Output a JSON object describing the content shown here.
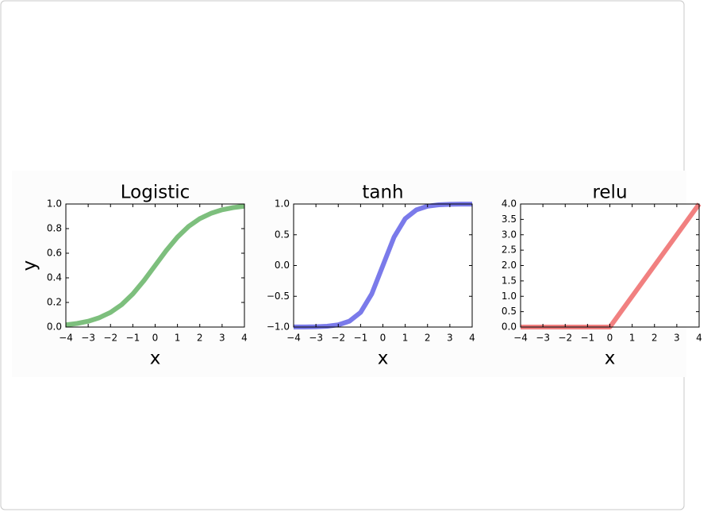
{
  "chart_data": [
    {
      "type": "line",
      "title": "Logistic",
      "xlabel": "x",
      "ylabel": "y",
      "color": "#6fb86f",
      "x": [
        -4,
        -3.5,
        -3,
        -2.5,
        -2,
        -1.5,
        -1,
        -0.5,
        0,
        0.5,
        1,
        1.5,
        2,
        2.5,
        3,
        3.5,
        4
      ],
      "values": [
        0.018,
        0.029,
        0.047,
        0.076,
        0.119,
        0.182,
        0.269,
        0.378,
        0.5,
        0.622,
        0.731,
        0.818,
        0.881,
        0.924,
        0.953,
        0.971,
        0.982
      ],
      "xlim": [
        -4,
        4
      ],
      "ylim": [
        0,
        1
      ],
      "xticks": [
        {
          "value": -4,
          "label": "−4"
        },
        {
          "value": -3,
          "label": "−3"
        },
        {
          "value": -2,
          "label": "−2"
        },
        {
          "value": -1,
          "label": "−1"
        },
        0,
        1,
        2,
        3,
        4
      ],
      "yticks": [
        {
          "value": 0,
          "label": "0.0"
        },
        0.2,
        0.4,
        0.6,
        0.8,
        {
          "value": 1,
          "label": "1.0"
        }
      ]
    },
    {
      "type": "line",
      "title": "tanh",
      "xlabel": "x",
      "color": "#6b6be8",
      "x": [
        -4,
        -3.5,
        -3,
        -2.5,
        -2,
        -1.5,
        -1,
        -0.5,
        0,
        0.5,
        1,
        1.5,
        2,
        2.5,
        3,
        3.5,
        4
      ],
      "values": [
        -0.999,
        -0.998,
        -0.995,
        -0.987,
        -0.964,
        -0.905,
        -0.762,
        -0.462,
        0,
        0.462,
        0.762,
        0.905,
        0.964,
        0.987,
        0.995,
        0.998,
        0.999
      ],
      "xlim": [
        -4,
        4
      ],
      "ylim": [
        -1,
        1
      ],
      "xticks": [
        {
          "value": -4,
          "label": "−4"
        },
        {
          "value": -3,
          "label": "−3"
        },
        {
          "value": -2,
          "label": "−2"
        },
        {
          "value": -1,
          "label": "−1"
        },
        0,
        1,
        2,
        3,
        4
      ],
      "yticks": [
        {
          "value": -1,
          "label": "−1.0"
        },
        {
          "value": -0.5,
          "label": "−0.5"
        },
        {
          "value": 0,
          "label": "0.0"
        },
        0.5,
        {
          "value": 1,
          "label": "1.0"
        }
      ]
    },
    {
      "type": "line",
      "title": "relu",
      "xlabel": "x",
      "color": "#f07272",
      "x": [
        -4,
        -3.5,
        -3,
        -2.5,
        -2,
        -1.5,
        -1,
        -0.5,
        0,
        0.5,
        1,
        1.5,
        2,
        2.5,
        3,
        3.5,
        4
      ],
      "values": [
        0,
        0,
        0,
        0,
        0,
        0,
        0,
        0,
        0,
        0.5,
        1,
        1.5,
        2,
        2.5,
        3,
        3.5,
        4
      ],
      "xlim": [
        -4,
        4
      ],
      "ylim": [
        0,
        4
      ],
      "xticks": [
        {
          "value": -4,
          "label": "−4"
        },
        {
          "value": -3,
          "label": "−3"
        },
        {
          "value": -2,
          "label": "−2"
        },
        {
          "value": -1,
          "label": "−1"
        },
        0,
        1,
        2,
        3,
        4
      ],
      "yticks": [
        {
          "value": 0,
          "label": "0.0"
        },
        0.5,
        {
          "value": 1,
          "label": "1.0"
        },
        1.5,
        {
          "value": 2,
          "label": "2.0"
        },
        2.5,
        {
          "value": 3,
          "label": "3.0"
        },
        3.5,
        {
          "value": 4,
          "label": "4.0"
        }
      ]
    }
  ]
}
